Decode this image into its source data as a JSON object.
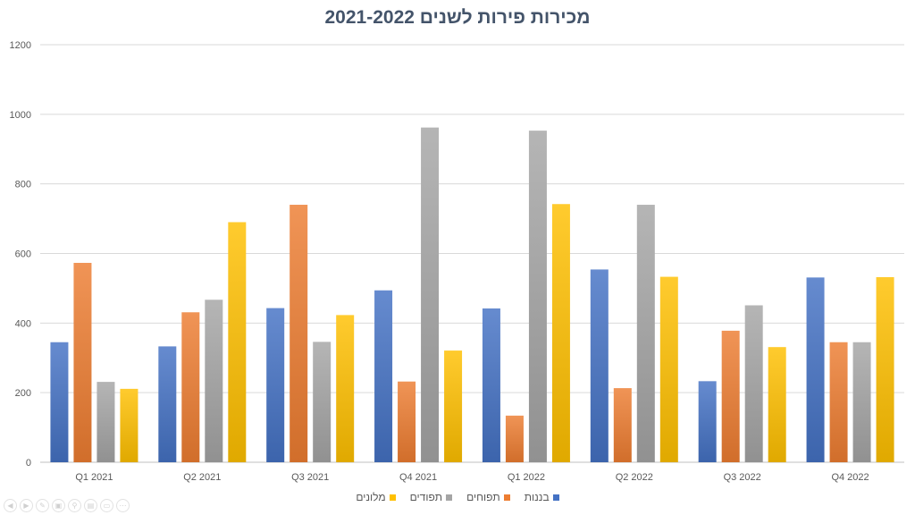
{
  "chart_data": {
    "type": "bar",
    "title": "מכירות פירות לשנים 2021-2022",
    "xlabel": "",
    "ylabel": "",
    "ylim": [
      0,
      1200
    ],
    "yticks": [
      0,
      200,
      400,
      600,
      800,
      1000,
      1200
    ],
    "grid": true,
    "legend_position": "bottom",
    "categories": [
      "Q1 2021",
      "Q2 2021",
      "Q3 2021",
      "Q4 2021",
      "Q1 2022",
      "Q2 2022",
      "Q3 2022",
      "Q4 2022"
    ],
    "series": [
      {
        "name": "בננות",
        "color": "#4472c4",
        "values": [
          345,
          333,
          443,
          494,
          442,
          554,
          233,
          531
        ]
      },
      {
        "name": "תפוחים",
        "color": "#ed7d31",
        "values": [
          573,
          431,
          740,
          232,
          134,
          213,
          378,
          345
        ]
      },
      {
        "name": "תפודים",
        "color": "#a5a5a5",
        "values": [
          231,
          467,
          346,
          962,
          953,
          740,
          451,
          345
        ]
      },
      {
        "name": "מלונים",
        "color": "#ffc000",
        "values": [
          211,
          690,
          423,
          321,
          742,
          533,
          331,
          532
        ]
      }
    ]
  },
  "toolbar": {
    "icons": [
      "back-icon",
      "forward-icon",
      "pen-icon",
      "pages-icon",
      "zoom-icon",
      "subtitles-icon",
      "screen-icon",
      "more-icon"
    ]
  }
}
